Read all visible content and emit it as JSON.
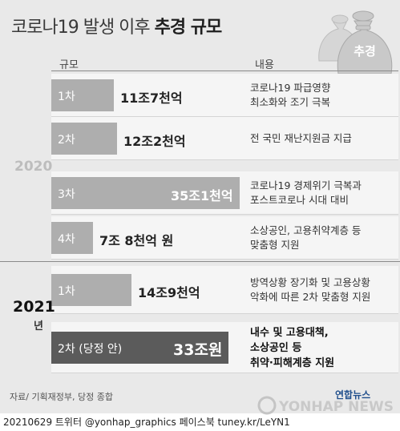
{
  "title": {
    "normal": "코로나19 발생 이후",
    "bold": "추경 규모"
  },
  "bag_label": "추경",
  "columns": {
    "scale": "규모",
    "content": "내용"
  },
  "year_labels": {
    "y2020": "2020",
    "y2021": "2021",
    "y2021_suffix": "년"
  },
  "chart_data": {
    "type": "bar",
    "orientation": "horizontal",
    "unit": "조원",
    "groups": [
      {
        "year": "2020",
        "rows": [
          0,
          1,
          2,
          3
        ]
      },
      {
        "year": "2021",
        "rows": [
          4,
          5
        ]
      }
    ],
    "categories": [
      "1차",
      "2차",
      "3차",
      "4차",
      "1차",
      "2차 (당정 안)"
    ],
    "values": [
      11.7,
      12.2,
      35.1,
      7.8,
      14.9,
      33
    ],
    "value_labels": [
      "11조7천억",
      "12조2천억",
      "35조1천억",
      "7조 8천억 원",
      "14조9천억",
      "33조원"
    ],
    "descriptions": [
      [
        "코로나19 파급영향",
        "최소화와 조기 극복"
      ],
      [
        "전 국민 재난지원금 지급"
      ],
      [
        "코로나19 경제위기 극복과",
        "포스트코로나 시대 대비"
      ],
      [
        "소상공인, 고용취약계층 등",
        "맞춤형 지원"
      ],
      [
        "방역상황 장기화 및 고용상황",
        "악화에 따른 2차 맞춤형 지원"
      ],
      [
        "내수 및 고용대책,",
        "소상공인 등",
        "취약·피해계층 지원"
      ]
    ],
    "highlight_index": 5,
    "colors": {
      "bar": "#aeaeae",
      "highlight": "#5b5b5b"
    }
  },
  "source": "자료/ 기획재정부, 당정 종합",
  "brand": "연합뉴스",
  "watermark": "YONHAP NEWS",
  "footer": "20210629 트위터 @yonhap_graphics  페이스북 tuney.kr/LeYN1"
}
